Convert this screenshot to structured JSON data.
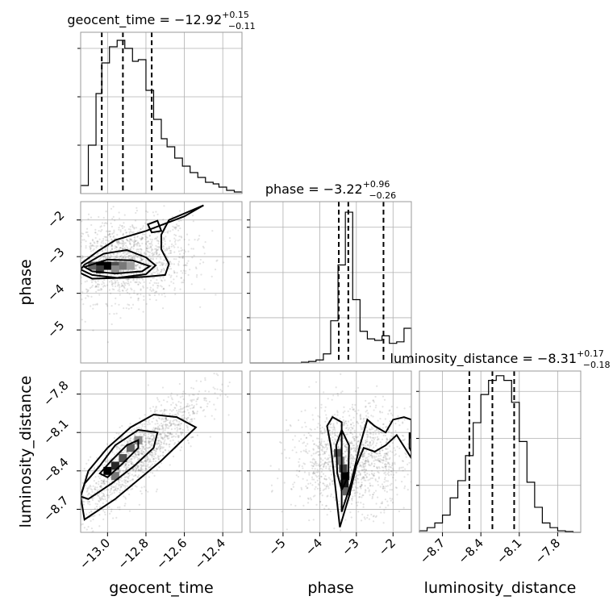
{
  "chart_data": {
    "type": "corner",
    "parameters": [
      {
        "name": "geocent_time",
        "label": "geocent_time",
        "range": [
          -13.14,
          -12.3
        ],
        "ticks": [
          "−13.0",
          "−12.8",
          "−12.6",
          "−12.4"
        ],
        "tick_values": [
          -13.0,
          -12.8,
          -12.6,
          -12.4
        ],
        "median": -12.92,
        "plus": 0.15,
        "minus": 0.11,
        "title_main": "geocent_time = −12.92",
        "title_sup": "+0.15",
        "title_sub": "−0.11",
        "quantiles": [
          -13.03,
          -12.92,
          -12.77
        ]
      },
      {
        "name": "phase",
        "label": "phase",
        "range": [
          -5.9,
          -1.5
        ],
        "ticks": [
          "−5",
          "−4",
          "−3",
          "−2"
        ],
        "tick_values": [
          -5,
          -4,
          -3,
          -2
        ],
        "median": -3.22,
        "plus": 0.96,
        "minus": 0.26,
        "title_main": "phase = −3.22",
        "title_sup": "+0.96",
        "title_sub": "−0.26",
        "quantiles": [
          -3.48,
          -3.22,
          -2.26
        ]
      },
      {
        "name": "luminosity_distance",
        "label": "luminosity_distance",
        "range": [
          -8.88,
          -7.62
        ],
        "ticks": [
          "−8.7",
          "−8.4",
          "−8.1",
          "−7.8"
        ],
        "tick_values": [
          -8.7,
          -8.4,
          -8.1,
          -7.8
        ],
        "median": -8.31,
        "plus": 0.17,
        "minus": 0.18,
        "title_main": "luminosity_distance = −8.31",
        "title_sup": "+0.17",
        "title_sub": "−0.18",
        "quantiles": [
          -8.49,
          -8.31,
          -8.14
        ]
      }
    ],
    "histograms": [
      {
        "param": "geocent_time",
        "bin_edges": [
          -13.14,
          -13.1,
          -13.06,
          -13.03,
          -12.99,
          -12.95,
          -12.91,
          -12.87,
          -12.84,
          -12.8,
          -12.76,
          -12.72,
          -12.69,
          -12.65,
          -12.61,
          -12.57,
          -12.53,
          -12.49,
          -12.45,
          -12.42,
          -12.38,
          -12.34,
          -12.3
        ],
        "counts": [
          0.05,
          0.3,
          0.62,
          0.81,
          0.91,
          0.95,
          0.9,
          0.82,
          0.83,
          0.64,
          0.46,
          0.34,
          0.29,
          0.22,
          0.17,
          0.13,
          0.1,
          0.07,
          0.06,
          0.04,
          0.02,
          0.01
        ],
        "ymax": 1.0
      },
      {
        "param": "phase",
        "bin_edges": [
          -5.9,
          -5.7,
          -5.5,
          -5.3,
          -5.1,
          -4.9,
          -4.7,
          -4.5,
          -4.3,
          -4.1,
          -3.9,
          -3.7,
          -3.5,
          -3.3,
          -3.1,
          -2.9,
          -2.7,
          -2.5,
          -2.3,
          -2.1,
          -1.9,
          -1.7,
          -1.5
        ],
        "counts": [
          0,
          0,
          0,
          0,
          0,
          0,
          0,
          0.005,
          0.01,
          0.02,
          0.06,
          0.28,
          0.65,
          1.0,
          0.42,
          0.21,
          0.16,
          0.15,
          0.18,
          0.13,
          0.14,
          0.23
        ],
        "ymax": 1.07
      },
      {
        "param": "luminosity_distance",
        "bin_edges": [
          -8.88,
          -8.82,
          -8.76,
          -8.7,
          -8.64,
          -8.58,
          -8.52,
          -8.46,
          -8.4,
          -8.34,
          -8.28,
          -8.22,
          -8.16,
          -8.1,
          -8.04,
          -7.98,
          -7.92,
          -7.86,
          -7.8,
          -7.74,
          -7.68,
          -7.62
        ],
        "counts": [
          0.01,
          0.03,
          0.06,
          0.11,
          0.22,
          0.33,
          0.49,
          0.7,
          0.88,
          0.97,
          1.0,
          0.97,
          0.83,
          0.58,
          0.32,
          0.16,
          0.06,
          0.03,
          0.01,
          0.005,
          0
        ],
        "ymax": 1.03
      }
    ],
    "pairs": [
      {
        "x": "geocent_time",
        "y": "phase",
        "cloud": {
          "center": [
            -12.9,
            -3.1
          ],
          "spread": [
            0.17,
            0.55
          ],
          "tilt": 0.1
        },
        "contours": [
          [
            [
              -13.12,
              -3.28
            ],
            [
              -13.0,
              -3.08
            ],
            [
              -12.87,
              -3.1
            ],
            [
              -12.78,
              -3.26
            ],
            [
              -12.82,
              -3.4
            ],
            [
              -12.96,
              -3.46
            ],
            [
              -13.08,
              -3.4
            ]
          ],
          [
            [
              -13.12,
              -3.22
            ],
            [
              -13.02,
              -2.92
            ],
            [
              -12.9,
              -2.82
            ],
            [
              -12.8,
              -3.02
            ],
            [
              -12.75,
              -3.24
            ],
            [
              -12.8,
              -3.48
            ],
            [
              -12.95,
              -3.58
            ],
            [
              -13.08,
              -3.5
            ],
            [
              -13.14,
              -3.35
            ]
          ],
          [
            [
              -13.14,
              -3.2
            ],
            [
              -13.05,
              -2.85
            ],
            [
              -12.96,
              -2.55
            ],
            [
              -12.8,
              -2.3
            ],
            [
              -12.6,
              -1.9
            ],
            [
              -12.5,
              -1.6
            ],
            [
              -12.68,
              -2.0
            ],
            [
              -12.72,
              -2.4
            ],
            [
              -12.72,
              -2.8
            ],
            [
              -12.68,
              -3.2
            ],
            [
              -12.7,
              -3.5
            ],
            [
              -12.8,
              -3.55
            ],
            [
              -12.92,
              -3.58
            ],
            [
              -13.08,
              -3.6
            ],
            [
              -13.14,
              -3.45
            ]
          ],
          [
            [
              -12.79,
              -2.12
            ],
            [
              -12.74,
              -2.02
            ],
            [
              -12.72,
              -2.3
            ],
            [
              -12.77,
              -2.34
            ]
          ]
        ],
        "hot_cells": [
          [
            -13.04,
            -3.25,
            1.0
          ],
          [
            -13.0,
            -3.25,
            1.0
          ],
          [
            -12.96,
            -3.25,
            0.6
          ],
          [
            -12.92,
            -3.25,
            0.4
          ],
          [
            -13.04,
            -3.35,
            0.7
          ],
          [
            -13.08,
            -3.25,
            0.5
          ],
          [
            -12.96,
            -3.35,
            0.3
          ],
          [
            -12.88,
            -3.25,
            0.2
          ]
        ]
      },
      {
        "x": "geocent_time",
        "y": "luminosity_distance",
        "cloud": {
          "center": [
            -12.85,
            -8.28
          ],
          "spread": [
            0.17,
            0.25
          ],
          "tilt": 0.85
        },
        "contours": [
          [
            [
              -13.0,
              -8.45
            ],
            [
              -12.92,
              -8.34
            ],
            [
              -12.84,
              -8.22
            ],
            [
              -12.84,
              -8.16
            ],
            [
              -12.9,
              -8.2
            ],
            [
              -12.98,
              -8.32
            ],
            [
              -13.04,
              -8.42
            ]
          ],
          [
            [
              -13.1,
              -8.62
            ],
            [
              -12.98,
              -8.5
            ],
            [
              -12.86,
              -8.36
            ],
            [
              -12.76,
              -8.22
            ],
            [
              -12.74,
              -8.1
            ],
            [
              -12.84,
              -8.08
            ],
            [
              -12.96,
              -8.2
            ],
            [
              -13.04,
              -8.36
            ],
            [
              -13.12,
              -8.5
            ],
            [
              -13.14,
              -8.6
            ]
          ],
          [
            [
              -13.12,
              -8.78
            ],
            [
              -12.96,
              -8.62
            ],
            [
              -12.72,
              -8.32
            ],
            [
              -12.54,
              -8.06
            ],
            [
              -12.64,
              -7.98
            ],
            [
              -12.76,
              -7.96
            ],
            [
              -12.88,
              -8.06
            ],
            [
              -13.0,
              -8.22
            ],
            [
              -13.1,
              -8.4
            ],
            [
              -13.14,
              -8.6
            ]
          ]
        ],
        "hot_cells": [
          [
            -13.0,
            -8.4,
            1.0
          ],
          [
            -12.96,
            -8.36,
            0.8
          ],
          [
            -12.92,
            -8.3,
            0.6
          ],
          [
            -12.88,
            -8.22,
            0.5
          ],
          [
            -12.96,
            -8.44,
            0.4
          ],
          [
            -12.84,
            -8.16,
            0.3
          ]
        ]
      },
      {
        "x": "phase",
        "y": "luminosity_distance",
        "cloud": {
          "center": [
            -3.1,
            -8.3
          ],
          "spread": [
            0.8,
            0.2
          ],
          "tilt": 0.05
        },
        "contours": [
          [
            [
              -3.4,
              -8.55
            ],
            [
              -3.22,
              -8.44
            ],
            [
              -3.2,
              -8.2
            ],
            [
              -3.4,
              -8.08
            ],
            [
              -3.55,
              -8.2
            ],
            [
              -3.52,
              -8.42
            ]
          ],
          [
            [
              -3.4,
              -8.72
            ],
            [
              -3.15,
              -8.5
            ],
            [
              -2.9,
              -8.2
            ],
            [
              -2.7,
              -8.0
            ],
            [
              -2.5,
              -8.05
            ],
            [
              -2.2,
              -8.1
            ],
            [
              -2.0,
              -8.0
            ],
            [
              -1.7,
              -7.98
            ],
            [
              -1.5,
              -8.0
            ],
            [
              -1.5,
              -8.3
            ],
            [
              -1.9,
              -8.12
            ],
            [
              -2.2,
              -8.2
            ],
            [
              -2.5,
              -8.25
            ],
            [
              -2.8,
              -8.22
            ],
            [
              -3.0,
              -8.36
            ],
            [
              -3.2,
              -8.6
            ],
            [
              -3.45,
              -8.84
            ],
            [
              -3.7,
              -8.2
            ],
            [
              -3.8,
              -8.05
            ],
            [
              -3.65,
              -7.98
            ],
            [
              -3.4,
              -8.02
            ]
          ],
          [
            [
              -1.55,
              -8.1
            ],
            [
              -1.5,
              -8.15
            ],
            [
              -1.5,
              -8.25
            ],
            [
              -1.55,
              -8.22
            ]
          ]
        ],
        "hot_cells": [
          [
            -3.3,
            -8.44,
            1.0
          ],
          [
            -3.32,
            -8.5,
            0.9
          ],
          [
            -3.36,
            -8.38,
            0.7
          ],
          [
            -3.5,
            -8.26,
            0.6
          ],
          [
            -3.26,
            -8.56,
            0.5
          ],
          [
            -3.44,
            -8.32,
            0.4
          ]
        ]
      }
    ],
    "grid": true
  }
}
